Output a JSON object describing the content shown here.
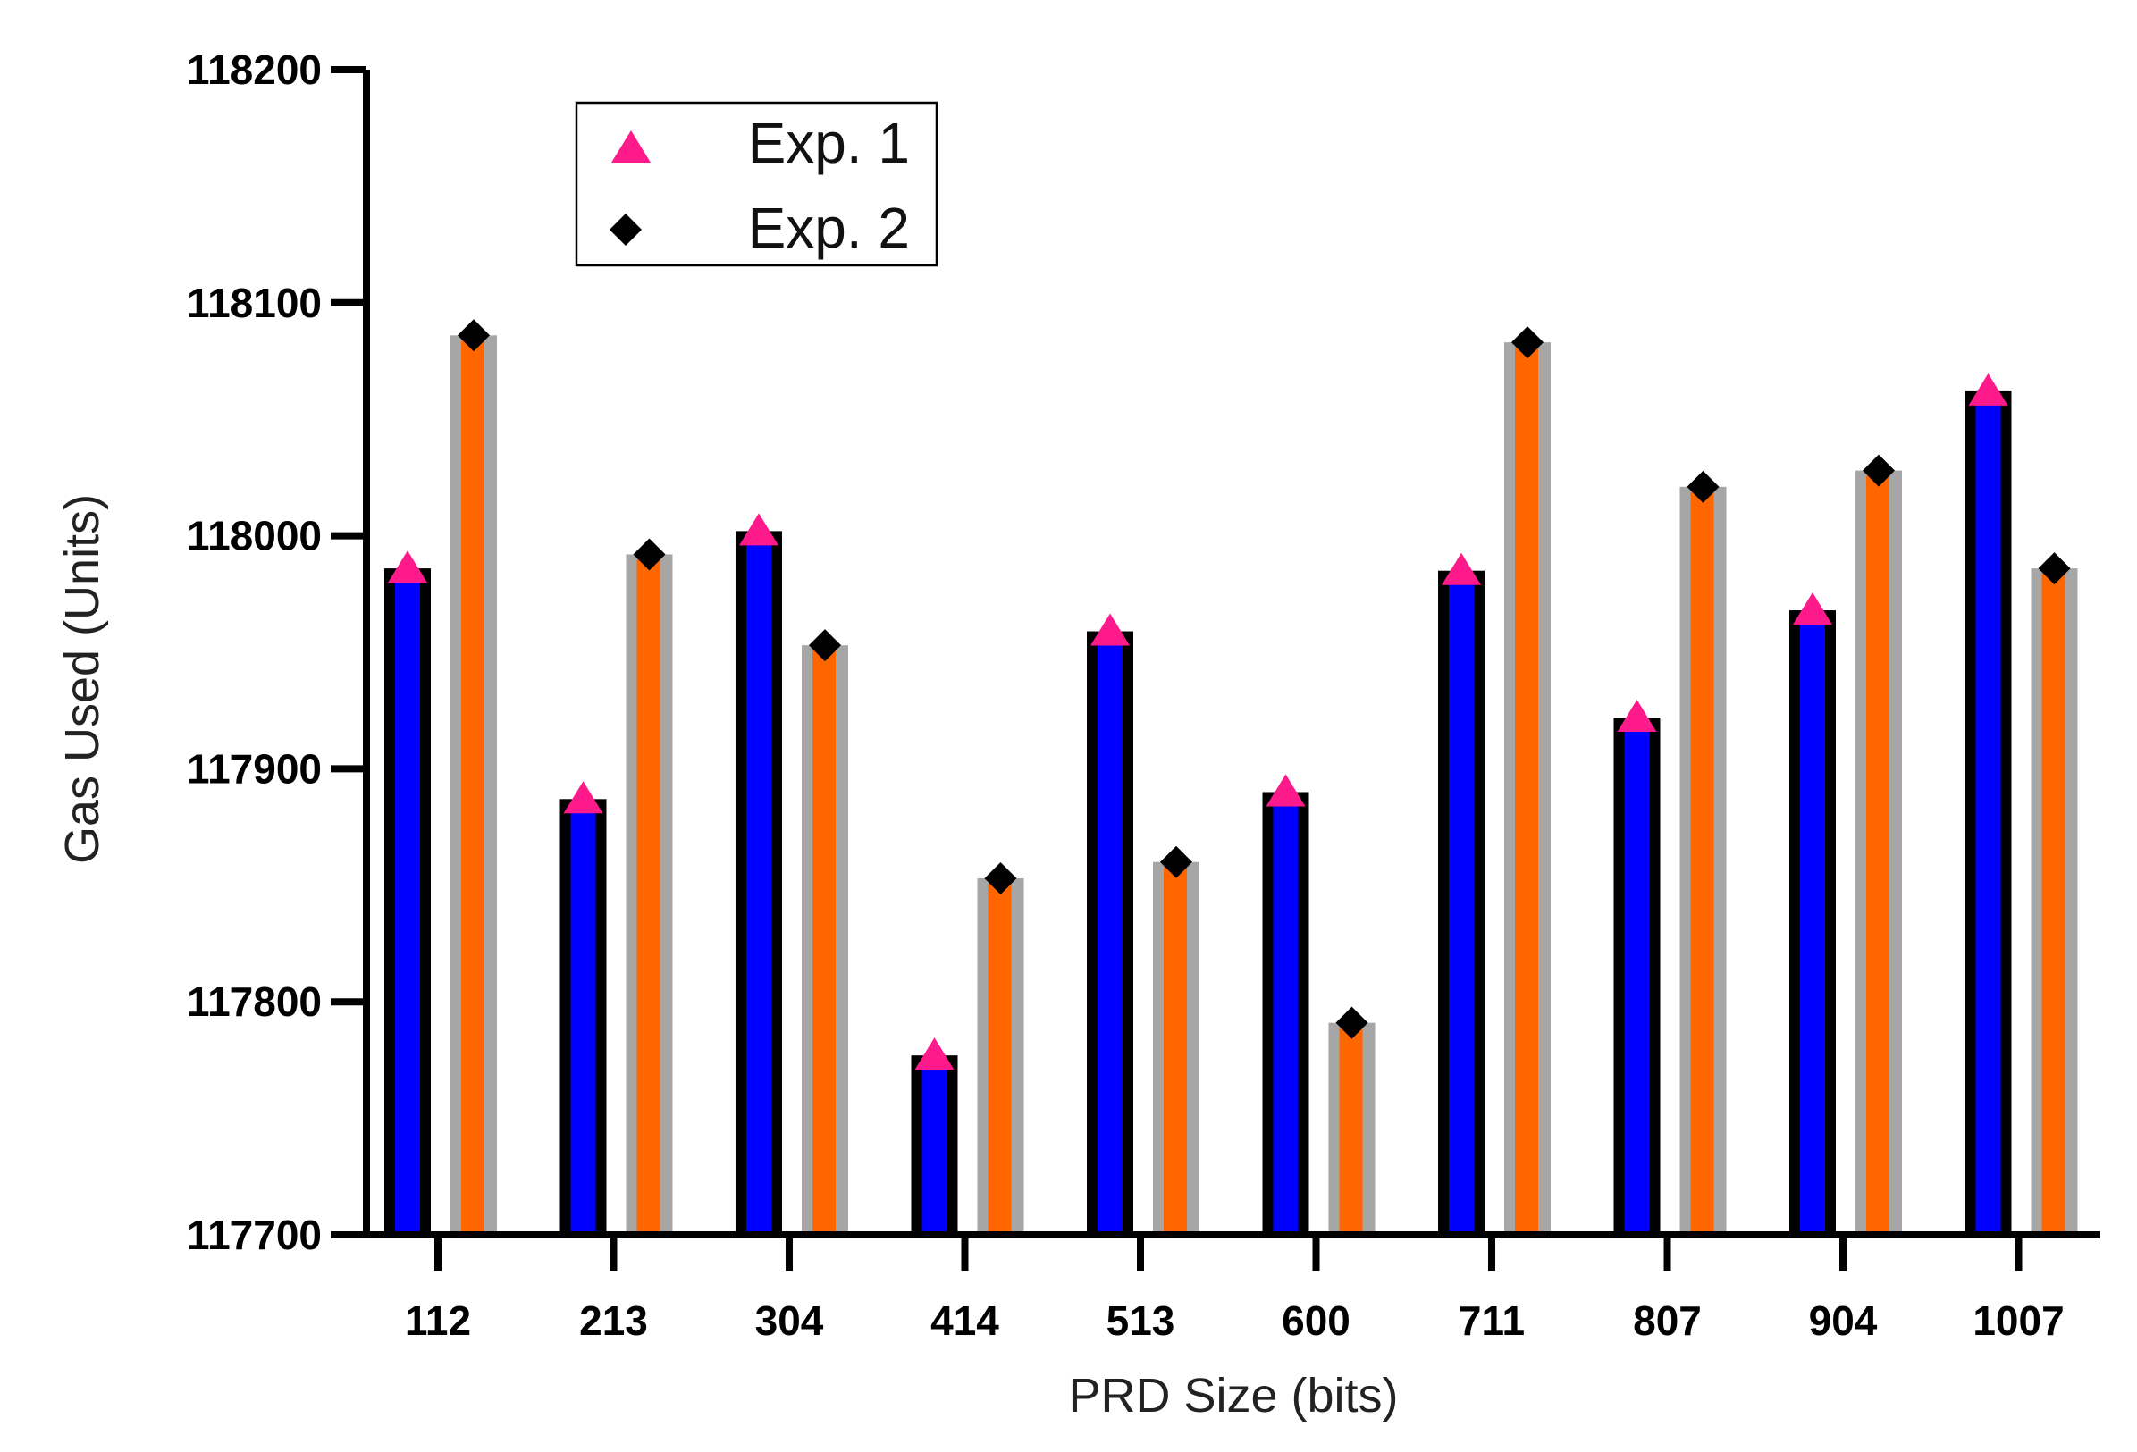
{
  "chart_data": {
    "type": "bar",
    "title": "",
    "xlabel": "PRD  Size (bits)",
    "ylabel": "Gas  Used (Units)",
    "ylim": [
      117700,
      118200
    ],
    "yticks": [
      117700,
      117800,
      117900,
      118000,
      118100,
      118200
    ],
    "categories": [
      "112",
      "213",
      "304",
      "414",
      "513",
      "600",
      "711",
      "807",
      "904",
      "1007"
    ],
    "series": [
      {
        "name": "Exp. 1",
        "marker": "triangle",
        "marker_color": "#ff1a8c",
        "bar_color": "#0000ff",
        "bar_edge_color": "#000000",
        "values": [
          117986,
          117887,
          118002,
          117777,
          117959,
          117890,
          117985,
          117922,
          117968,
          118062
        ]
      },
      {
        "name": "Exp. 2",
        "marker": "diamond",
        "marker_color": "#000000",
        "bar_color": "#ff6600",
        "bar_edge_color": "#a6a6a6",
        "values": [
          118086,
          117992,
          117953,
          117853,
          117860,
          117791,
          118083,
          118021,
          118028,
          117986
        ]
      }
    ],
    "legend": {
      "position": "top-left",
      "entries": [
        "Exp. 1",
        "Exp. 2"
      ]
    }
  }
}
